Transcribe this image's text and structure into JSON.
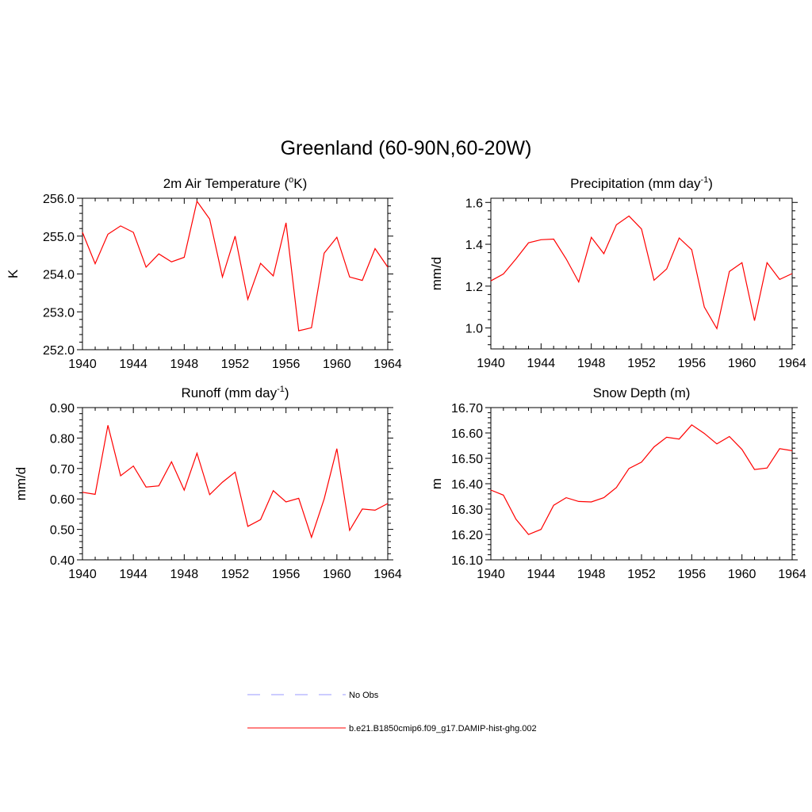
{
  "figure": {
    "title": "Greenland (60-90N,60-20W)"
  },
  "legend": {
    "entries": [
      {
        "label": "No Obs",
        "color": "#9999ff",
        "dash": true
      },
      {
        "label": "b.e21.B1850cmip6.f09_g17.DAMIP-hist-ghg.002",
        "color": "#ff0000",
        "dash": false
      }
    ]
  },
  "chart_data": [
    {
      "type": "line",
      "title_main": "2m Air Temperature (",
      "title_sup": "o",
      "title_tail": "K)",
      "ylabel": "K",
      "xlim": [
        1940,
        1964
      ],
      "ylim": [
        252.0,
        256.0
      ],
      "yticks": [
        252.0,
        253.0,
        254.0,
        255.0,
        256.0
      ],
      "ytick_labels": [
        "252.0",
        "253.0",
        "254.0",
        "255.0",
        "256.0"
      ],
      "xticks": [
        1940,
        1944,
        1948,
        1952,
        1956,
        1960,
        1964
      ],
      "xtick_labels": [
        "1940",
        "1944",
        "1948",
        "1952",
        "1956",
        "1960",
        "1964"
      ],
      "series": [
        {
          "color": "#ff0000",
          "x": [
            1940,
            1941,
            1942,
            1943,
            1944,
            1945,
            1946,
            1947,
            1948,
            1949,
            1950,
            1951,
            1952,
            1953,
            1954,
            1955,
            1956,
            1957,
            1958,
            1959,
            1960,
            1961,
            1962,
            1963,
            1964
          ],
          "y": [
            255.1,
            254.27,
            255.05,
            255.27,
            255.1,
            254.18,
            254.53,
            254.32,
            254.44,
            255.92,
            255.45,
            253.92,
            255.0,
            253.33,
            254.28,
            253.95,
            255.35,
            252.5,
            252.58,
            254.55,
            254.97,
            253.92,
            253.83,
            254.67,
            254.18
          ]
        }
      ]
    },
    {
      "type": "line",
      "title_main": "Precipitation (mm day",
      "title_sup": "-1",
      "title_tail": ")",
      "ylabel": "mm/d",
      "xlim": [
        1940,
        1964
      ],
      "ylim": [
        0.9,
        1.62
      ],
      "yticks": [
        1.0,
        1.2,
        1.4,
        1.6
      ],
      "ytick_labels": [
        "1.0",
        "1.2",
        "1.4",
        "1.6"
      ],
      "xticks": [
        1940,
        1944,
        1948,
        1952,
        1956,
        1960,
        1964
      ],
      "xtick_labels": [
        "1940",
        "1944",
        "1948",
        "1952",
        "1956",
        "1960",
        "1964"
      ],
      "series": [
        {
          "color": "#ff0000",
          "x": [
            1940,
            1941,
            1942,
            1943,
            1944,
            1945,
            1946,
            1947,
            1948,
            1949,
            1950,
            1951,
            1952,
            1953,
            1954,
            1955,
            1956,
            1957,
            1958,
            1959,
            1960,
            1961,
            1962,
            1963,
            1964
          ],
          "y": [
            1.225,
            1.258,
            1.33,
            1.407,
            1.422,
            1.425,
            1.33,
            1.22,
            1.433,
            1.355,
            1.493,
            1.535,
            1.473,
            1.228,
            1.282,
            1.43,
            1.374,
            1.1,
            0.997,
            1.27,
            1.312,
            1.035,
            1.312,
            1.232,
            1.26
          ]
        }
      ]
    },
    {
      "type": "line",
      "title_main": "Runoff (mm day",
      "title_sup": "-1",
      "title_tail": ")",
      "ylabel": "mm/d",
      "xlim": [
        1940,
        1964
      ],
      "ylim": [
        0.4,
        0.9
      ],
      "yticks": [
        0.4,
        0.5,
        0.6,
        0.7,
        0.8,
        0.9
      ],
      "ytick_labels": [
        "0.40",
        "0.50",
        "0.60",
        "0.70",
        "0.80",
        "0.90"
      ],
      "xticks": [
        1940,
        1944,
        1948,
        1952,
        1956,
        1960,
        1964
      ],
      "xtick_labels": [
        "1940",
        "1944",
        "1948",
        "1952",
        "1956",
        "1960",
        "1964"
      ],
      "series": [
        {
          "color": "#ff0000",
          "x": [
            1940,
            1941,
            1942,
            1943,
            1944,
            1945,
            1946,
            1947,
            1948,
            1949,
            1950,
            1951,
            1952,
            1953,
            1954,
            1955,
            1956,
            1957,
            1958,
            1959,
            1960,
            1961,
            1962,
            1963,
            1964
          ],
          "y": [
            0.622,
            0.615,
            0.842,
            0.676,
            0.708,
            0.639,
            0.643,
            0.722,
            0.629,
            0.75,
            0.614,
            0.655,
            0.688,
            0.51,
            0.532,
            0.627,
            0.59,
            0.602,
            0.474,
            0.6,
            0.765,
            0.497,
            0.567,
            0.563,
            0.585
          ]
        }
      ]
    },
    {
      "type": "line",
      "title_main": "Snow Depth (m)",
      "title_sup": "",
      "title_tail": "",
      "ylabel": "m",
      "xlim": [
        1940,
        1964
      ],
      "ylim": [
        16.1,
        16.7
      ],
      "yticks": [
        16.1,
        16.2,
        16.3,
        16.4,
        16.5,
        16.6,
        16.7
      ],
      "ytick_labels": [
        "16.10",
        "16.20",
        "16.30",
        "16.40",
        "16.50",
        "16.60",
        "16.70"
      ],
      "xticks": [
        1940,
        1944,
        1948,
        1952,
        1956,
        1960,
        1964
      ],
      "xtick_labels": [
        "1940",
        "1944",
        "1948",
        "1952",
        "1956",
        "1960",
        "1964"
      ],
      "series": [
        {
          "color": "#ff0000",
          "x": [
            1940,
            1941,
            1942,
            1943,
            1944,
            1945,
            1946,
            1947,
            1948,
            1949,
            1950,
            1951,
            1952,
            1953,
            1954,
            1955,
            1956,
            1957,
            1958,
            1959,
            1960,
            1961,
            1962,
            1963,
            1964
          ],
          "y": [
            16.375,
            16.355,
            16.26,
            16.2,
            16.22,
            16.315,
            16.345,
            16.33,
            16.328,
            16.345,
            16.385,
            16.46,
            16.485,
            16.545,
            16.583,
            16.576,
            16.632,
            16.598,
            16.557,
            16.586,
            16.535,
            16.456,
            16.462,
            16.538,
            16.53
          ]
        }
      ]
    }
  ]
}
